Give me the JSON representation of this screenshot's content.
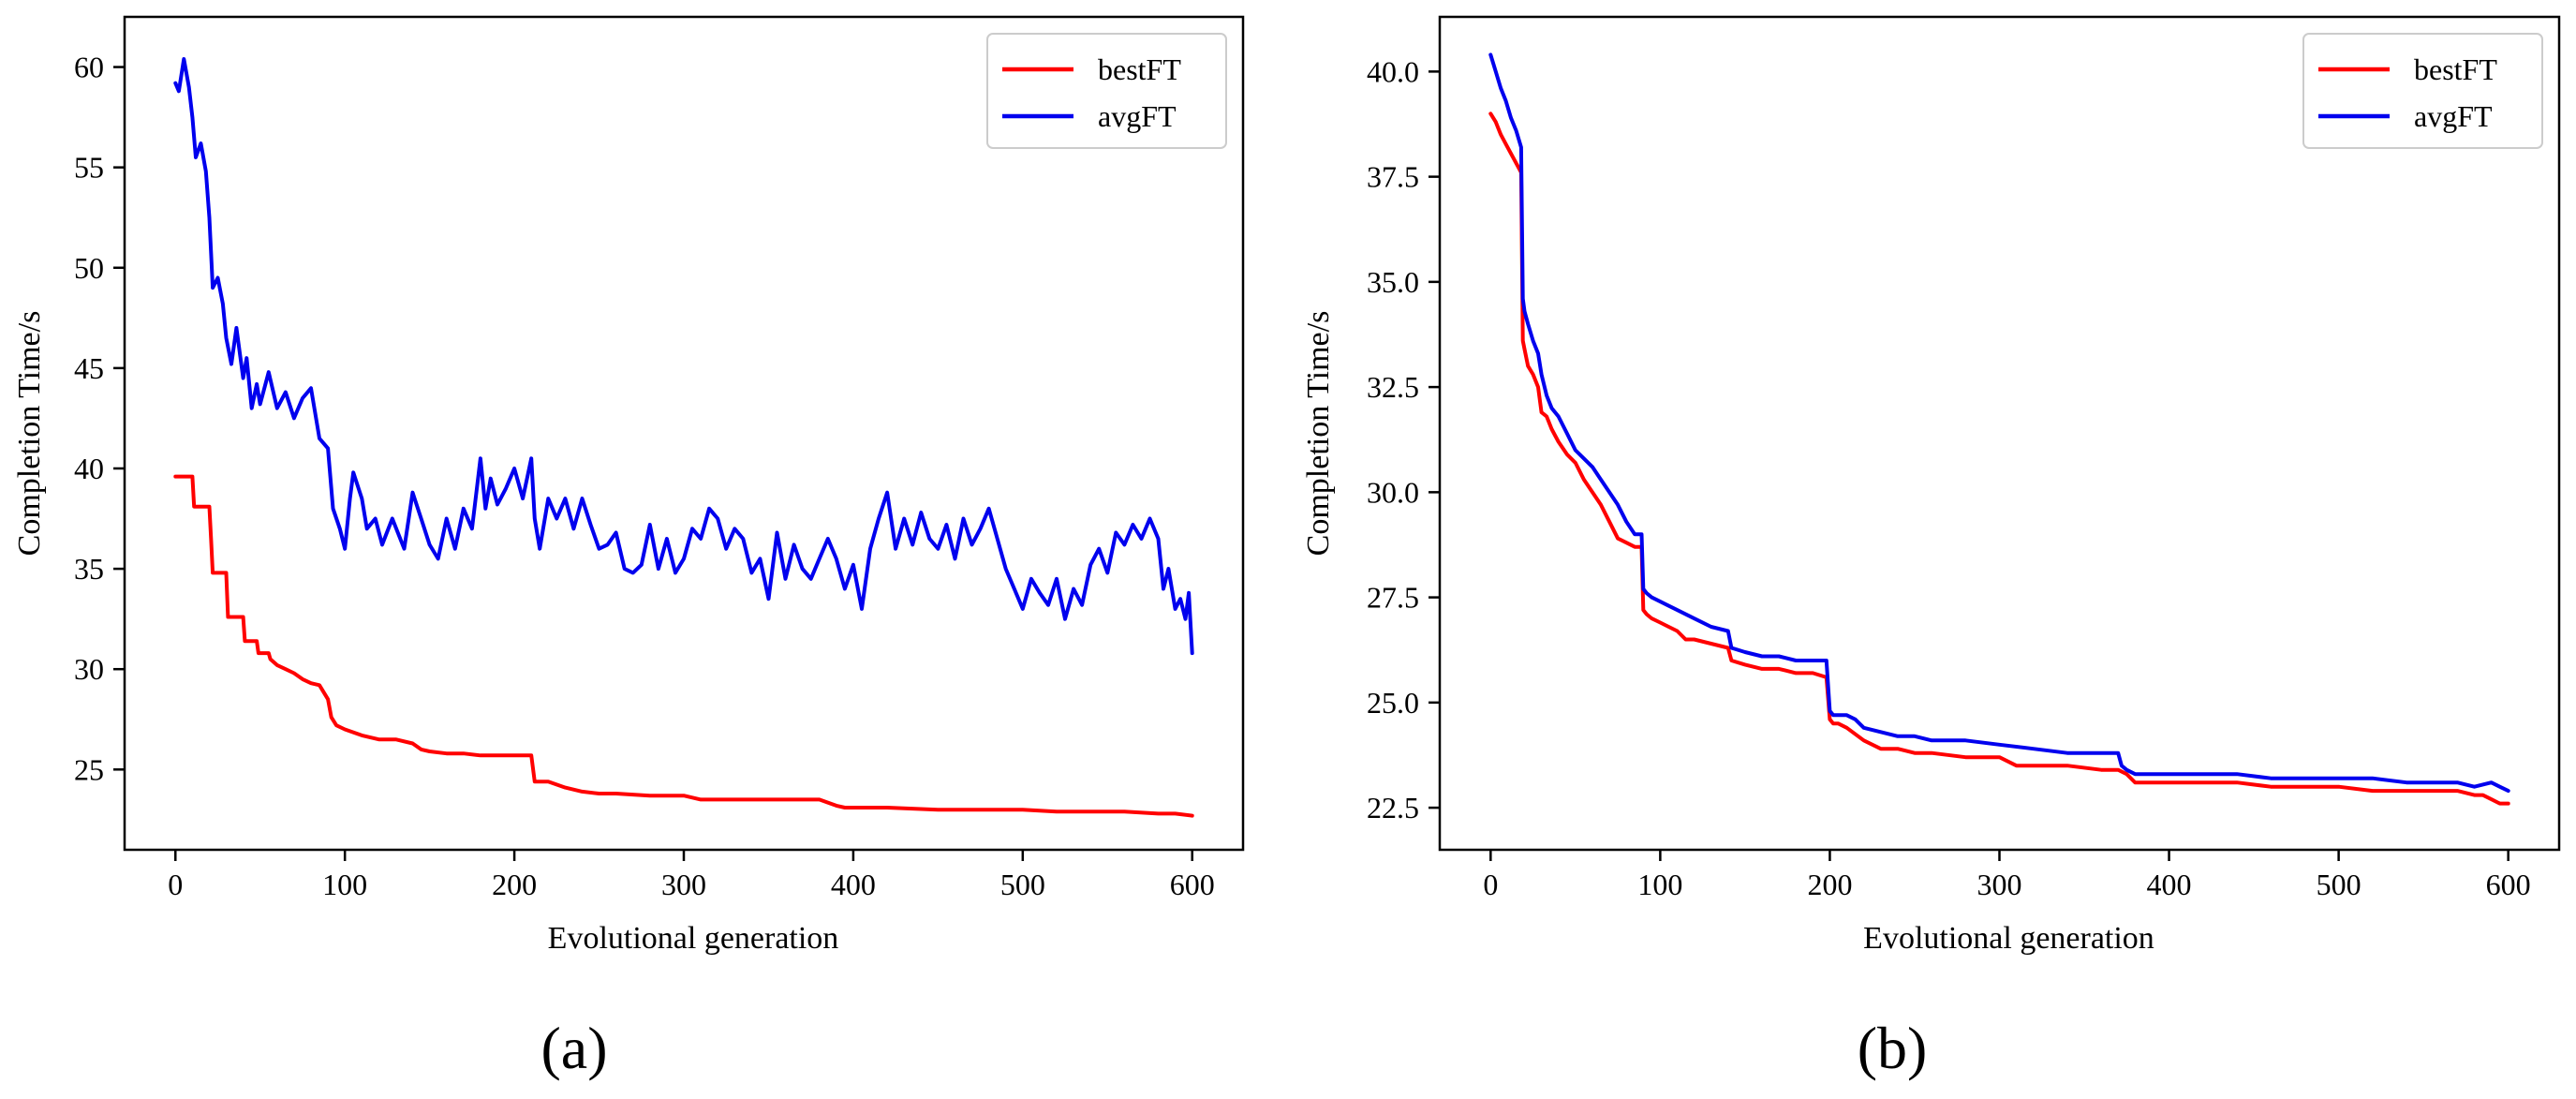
{
  "chart_data": [
    {
      "type": "line",
      "panel_label": "(a)",
      "title": "",
      "xlabel": "Evolutional generation",
      "ylabel": "Completion Time/s",
      "xlim": [
        -30,
        630
      ],
      "ylim": [
        21,
        62.5
      ],
      "xticks": [
        0,
        100,
        200,
        300,
        400,
        500,
        600
      ],
      "xtick_labels": [
        "0",
        "100",
        "200",
        "300",
        "400",
        "500",
        "600"
      ],
      "yticks": [
        25,
        30,
        35,
        40,
        45,
        50,
        55,
        60
      ],
      "ytick_labels": [
        "25",
        "30",
        "35",
        "40",
        "45",
        "50",
        "55",
        "60"
      ],
      "legend": {
        "position": "top-right",
        "entries": [
          "bestFT",
          "avgFT"
        ]
      },
      "series": [
        {
          "name": "bestFT",
          "color": "#ff0000",
          "x": [
            0,
            10,
            11,
            20,
            21,
            22,
            30,
            31,
            40,
            41,
            48,
            49,
            55,
            56,
            60,
            65,
            70,
            75,
            80,
            85,
            90,
            92,
            95,
            100,
            110,
            120,
            130,
            140,
            145,
            150,
            160,
            170,
            180,
            190,
            200,
            210,
            212,
            220,
            230,
            240,
            250,
            260,
            280,
            300,
            310,
            320,
            340,
            360,
            380,
            390,
            395,
            420,
            450,
            480,
            500,
            520,
            540,
            560,
            580,
            590,
            600
          ],
          "values": [
            39.6,
            39.6,
            38.1,
            38.1,
            36.5,
            34.8,
            34.8,
            32.6,
            32.6,
            31.4,
            31.4,
            30.8,
            30.8,
            30.5,
            30.2,
            30.0,
            29.8,
            29.5,
            29.3,
            29.2,
            28.5,
            27.6,
            27.2,
            27.0,
            26.7,
            26.5,
            26.5,
            26.3,
            26.0,
            25.9,
            25.8,
            25.8,
            25.7,
            25.7,
            25.7,
            25.7,
            24.4,
            24.4,
            24.1,
            23.9,
            23.8,
            23.8,
            23.7,
            23.7,
            23.5,
            23.5,
            23.5,
            23.5,
            23.5,
            23.2,
            23.1,
            23.1,
            23.0,
            23.0,
            23.0,
            22.9,
            22.9,
            22.9,
            22.8,
            22.8,
            22.7
          ]
        },
        {
          "name": "avgFT",
          "color": "#0000ee",
          "x": [
            0,
            2,
            5,
            8,
            10,
            12,
            15,
            18,
            20,
            22,
            25,
            28,
            30,
            33,
            36,
            40,
            42,
            45,
            48,
            50,
            55,
            60,
            65,
            70,
            75,
            80,
            83,
            85,
            90,
            93,
            97,
            100,
            103,
            105,
            110,
            113,
            118,
            122,
            128,
            135,
            140,
            145,
            150,
            155,
            160,
            165,
            170,
            175,
            180,
            183,
            186,
            190,
            195,
            200,
            205,
            210,
            212,
            215,
            220,
            225,
            230,
            235,
            240,
            245,
            250,
            255,
            260,
            265,
            270,
            275,
            280,
            285,
            290,
            295,
            300,
            305,
            310,
            315,
            320,
            325,
            330,
            335,
            340,
            345,
            350,
            355,
            360,
            365,
            370,
            375,
            380,
            385,
            390,
            395,
            400,
            405,
            410,
            415,
            420,
            425,
            430,
            435,
            440,
            445,
            450,
            455,
            460,
            465,
            470,
            475,
            480,
            485,
            490,
            495,
            500,
            505,
            510,
            515,
            520,
            525,
            530,
            535,
            540,
            545,
            550,
            555,
            560,
            565,
            570,
            575,
            580,
            583,
            586,
            590,
            593,
            596,
            598,
            600
          ],
          "values": [
            59.2,
            58.8,
            60.4,
            59.0,
            57.5,
            55.5,
            56.2,
            54.8,
            52.5,
            49.0,
            49.5,
            48.2,
            46.5,
            45.2,
            47.0,
            44.5,
            45.5,
            43.0,
            44.2,
            43.2,
            44.8,
            43.0,
            43.8,
            42.5,
            43.5,
            44.0,
            42.5,
            41.5,
            41.0,
            38.0,
            37.0,
            36.0,
            38.5,
            39.8,
            38.5,
            37.0,
            37.5,
            36.2,
            37.5,
            36.0,
            38.8,
            37.5,
            36.2,
            35.5,
            37.5,
            36.0,
            38.0,
            37.0,
            40.5,
            38.0,
            39.5,
            38.2,
            39.0,
            40.0,
            38.5,
            40.5,
            37.5,
            36.0,
            38.5,
            37.5,
            38.5,
            37.0,
            38.5,
            37.2,
            36.0,
            36.2,
            36.8,
            35.0,
            34.8,
            35.2,
            37.2,
            35.0,
            36.5,
            34.8,
            35.5,
            37.0,
            36.5,
            38.0,
            37.5,
            36.0,
            37.0,
            36.5,
            34.8,
            35.5,
            33.5,
            36.8,
            34.5,
            36.2,
            35.0,
            34.5,
            35.5,
            36.5,
            35.5,
            34.0,
            35.2,
            33.0,
            36.0,
            37.5,
            38.8,
            36.0,
            37.5,
            36.2,
            37.8,
            36.5,
            36.0,
            37.2,
            35.5,
            37.5,
            36.2,
            37.0,
            38.0,
            36.5,
            35.0,
            34.0,
            33.0,
            34.5,
            33.8,
            33.2,
            34.5,
            32.5,
            34.0,
            33.2,
            35.2,
            36.0,
            34.8,
            36.8,
            36.2,
            37.2,
            36.5,
            37.5,
            36.5,
            34.0,
            35.0,
            33.0,
            33.5,
            32.5,
            33.8,
            30.8
          ]
        }
      ]
    },
    {
      "type": "line",
      "panel_label": "(b)",
      "title": "",
      "xlabel": "Evolutional generation",
      "ylabel": "Completion Time/s",
      "xlim": [
        -30,
        630
      ],
      "ylim": [
        21.5,
        41.3
      ],
      "xticks": [
        0,
        100,
        200,
        300,
        400,
        500,
        600
      ],
      "xtick_labels": [
        "0",
        "100",
        "200",
        "300",
        "400",
        "500",
        "600"
      ],
      "yticks": [
        22.5,
        25.0,
        27.5,
        30.0,
        32.5,
        35.0,
        37.5,
        40.0
      ],
      "ytick_labels": [
        "22.5",
        "25.0",
        "27.5",
        "30.0",
        "32.5",
        "35.0",
        "37.5",
        "40.0"
      ],
      "legend": {
        "position": "top-right",
        "entries": [
          "bestFT",
          "avgFT"
        ]
      },
      "series": [
        {
          "name": "bestFT",
          "color": "#ff0000",
          "x": [
            0,
            3,
            6,
            10,
            14,
            18,
            19,
            20,
            22,
            25,
            28,
            30,
            33,
            36,
            40,
            45,
            50,
            55,
            60,
            65,
            70,
            75,
            80,
            85,
            89,
            90,
            92,
            95,
            100,
            105,
            110,
            115,
            120,
            130,
            140,
            142,
            150,
            160,
            170,
            180,
            190,
            198,
            200,
            202,
            205,
            210,
            220,
            230,
            240,
            250,
            260,
            280,
            300,
            310,
            320,
            340,
            360,
            370,
            375,
            380,
            400,
            420,
            440,
            460,
            480,
            500,
            520,
            540,
            560,
            570,
            580,
            585,
            590,
            595,
            600
          ],
          "values": [
            39.0,
            38.8,
            38.5,
            38.2,
            37.9,
            37.6,
            33.6,
            33.4,
            33.0,
            32.8,
            32.5,
            31.9,
            31.8,
            31.5,
            31.2,
            30.9,
            30.7,
            30.3,
            30.0,
            29.7,
            29.3,
            28.9,
            28.8,
            28.7,
            28.7,
            27.2,
            27.1,
            27.0,
            26.9,
            26.8,
            26.7,
            26.5,
            26.5,
            26.4,
            26.3,
            26.0,
            25.9,
            25.8,
            25.8,
            25.7,
            25.7,
            25.6,
            24.6,
            24.5,
            24.5,
            24.4,
            24.1,
            23.9,
            23.9,
            23.8,
            23.8,
            23.7,
            23.7,
            23.5,
            23.5,
            23.5,
            23.4,
            23.4,
            23.3,
            23.1,
            23.1,
            23.1,
            23.1,
            23.0,
            23.0,
            23.0,
            22.9,
            22.9,
            22.9,
            22.9,
            22.8,
            22.8,
            22.7,
            22.6,
            22.6
          ]
        },
        {
          "name": "avgFT",
          "color": "#0000ee",
          "x": [
            0,
            3,
            6,
            9,
            12,
            15,
            18,
            19,
            20,
            22,
            25,
            28,
            30,
            33,
            36,
            40,
            45,
            50,
            55,
            60,
            65,
            70,
            75,
            80,
            85,
            89,
            90,
            92,
            95,
            100,
            105,
            110,
            120,
            130,
            140,
            142,
            150,
            160,
            170,
            180,
            190,
            198,
            200,
            202,
            205,
            210,
            215,
            220,
            230,
            240,
            250,
            260,
            280,
            300,
            320,
            340,
            360,
            370,
            372,
            375,
            380,
            400,
            420,
            440,
            460,
            480,
            500,
            520,
            540,
            560,
            570,
            580,
            590,
            595,
            600
          ],
          "values": [
            40.4,
            40.0,
            39.6,
            39.3,
            38.9,
            38.6,
            38.2,
            34.6,
            34.3,
            34.0,
            33.6,
            33.3,
            32.8,
            32.3,
            32.0,
            31.8,
            31.4,
            31.0,
            30.8,
            30.6,
            30.3,
            30.0,
            29.7,
            29.3,
            29.0,
            29.0,
            27.7,
            27.6,
            27.5,
            27.4,
            27.3,
            27.2,
            27.0,
            26.8,
            26.7,
            26.3,
            26.2,
            26.1,
            26.1,
            26.0,
            26.0,
            26.0,
            24.8,
            24.7,
            24.7,
            24.7,
            24.6,
            24.4,
            24.3,
            24.2,
            24.2,
            24.1,
            24.1,
            24.0,
            23.9,
            23.8,
            23.8,
            23.8,
            23.5,
            23.4,
            23.3,
            23.3,
            23.3,
            23.3,
            23.2,
            23.2,
            23.2,
            23.2,
            23.1,
            23.1,
            23.1,
            23.0,
            23.1,
            23.0,
            22.9
          ]
        }
      ]
    }
  ]
}
